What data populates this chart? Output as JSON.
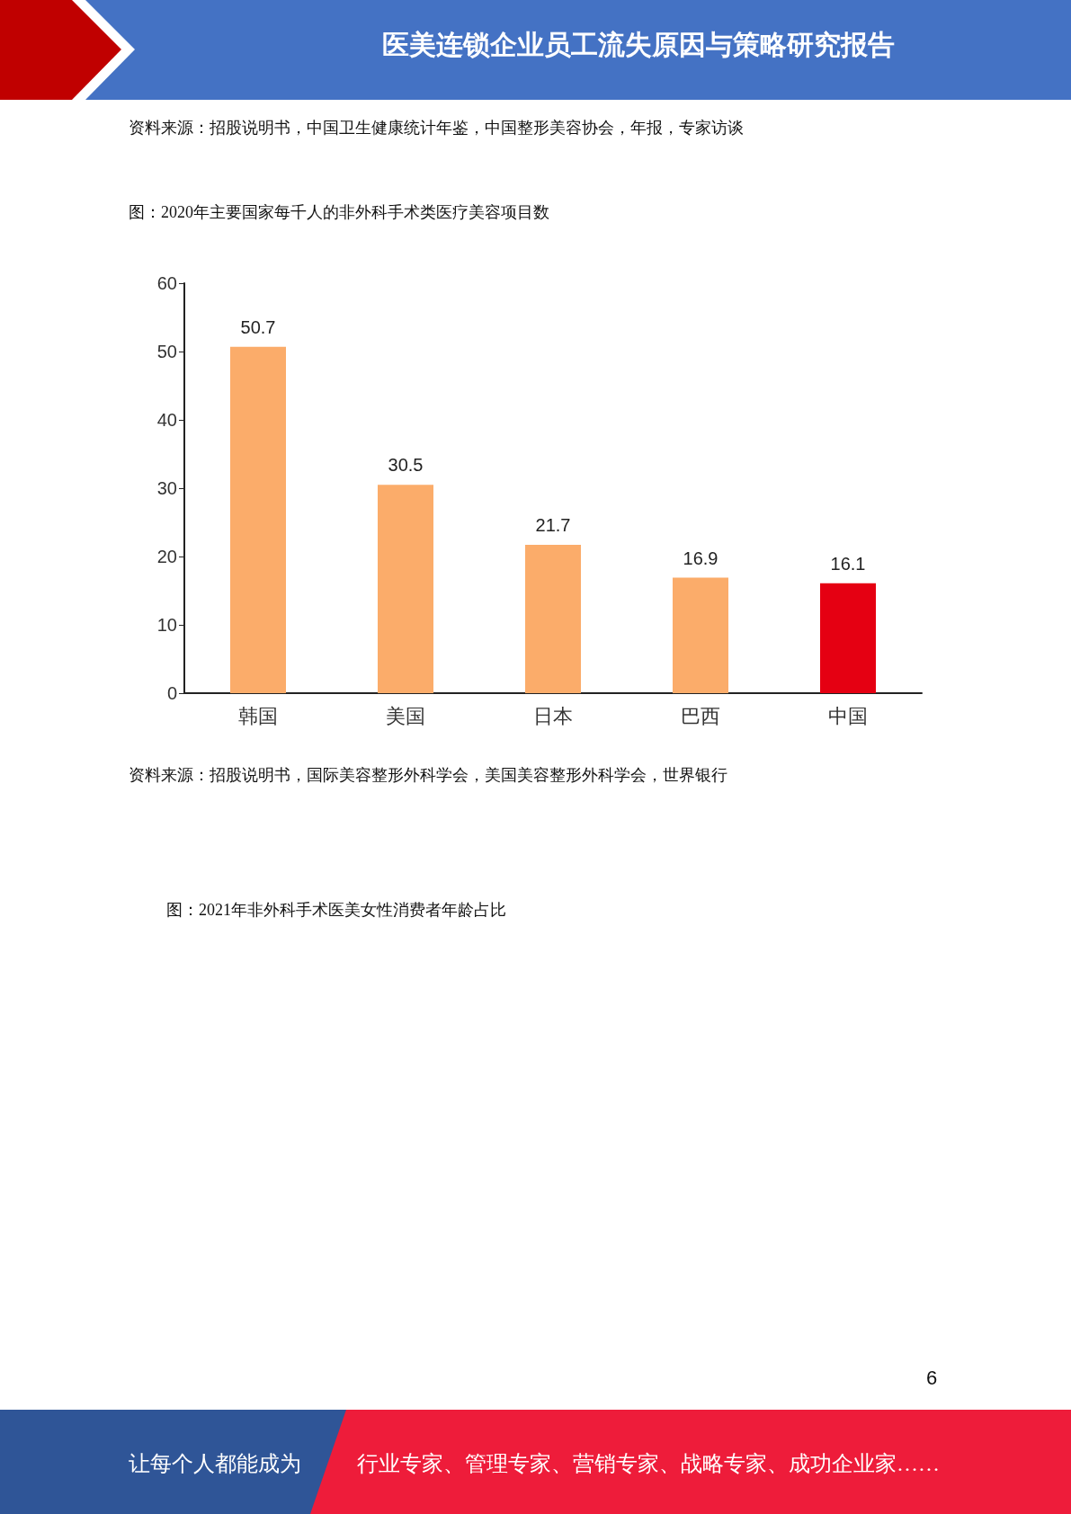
{
  "chart_data": {
    "type": "bar",
    "title": "图：2020年主要国家每千人的非外科手术类医疗美容项目数",
    "categories": [
      "韩国",
      "美国",
      "日本",
      "巴西",
      "中国"
    ],
    "values": [
      50.7,
      30.5,
      21.7,
      16.9,
      16.1
    ],
    "colors": [
      "#fbac6a",
      "#fbac6a",
      "#fbac6a",
      "#fbac6a",
      "#e50012"
    ],
    "ylim": [
      0,
      60
    ],
    "yticks": [
      0,
      10,
      20,
      30,
      40,
      50,
      60
    ],
    "grid": false,
    "data_labels": true,
    "annotations": [
      "医美连锁企业员工流失原因与策略研究报告",
      "资料来源：招股说明书，中国卫生健康统计年鉴，中国整形美容协会，年报，专家访谈",
      "资料来源：招股说明书，国际美容整形外科学会，美国美容整形外科学会，世界银行",
      "图：2021年非外科手术医美女性消费者年龄占比",
      "6",
      "让每个人都能成为",
      "行业专家、管理专家、营销专家、战略专家、成功企业家……"
    ]
  }
}
